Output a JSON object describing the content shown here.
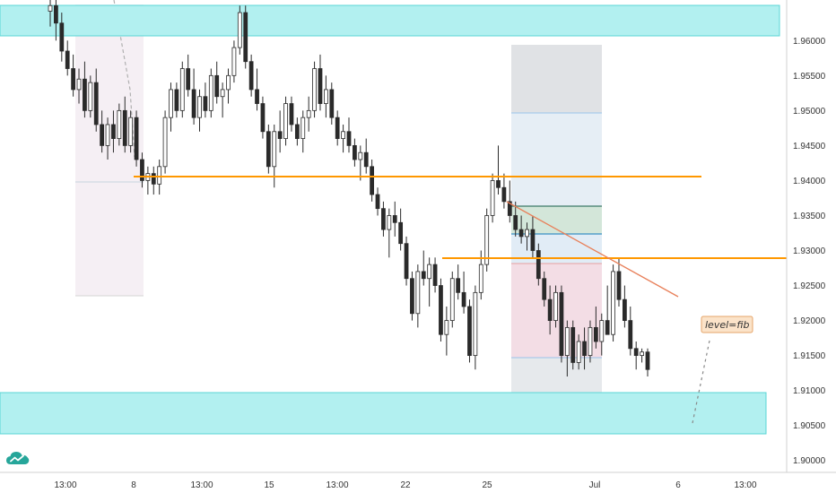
{
  "chart_data": {
    "type": "candlestick",
    "symbol_hint": "",
    "x_tick_labels": [
      "13:00",
      "8",
      "13:00",
      "15",
      "13:00",
      "22",
      "25",
      "Jul",
      "6",
      "13:00"
    ],
    "y_tick_labels": [
      "1.96000",
      "1.95500",
      "1.95000",
      "1.94500",
      "1.94000",
      "1.93500",
      "1.93000",
      "1.92500",
      "1.92000",
      "1.91500",
      "1.91000",
      "1.90500",
      "1.90000"
    ],
    "ylim": [
      1.8983,
      1.9658
    ],
    "grid": false,
    "annotation_label": "level=fib",
    "horizontal_levels": [
      1.9384,
      1.9265
    ],
    "zones": [
      {
        "name": "supply-zone",
        "y_low": 1.959,
        "y_high": 1.9634
      },
      {
        "name": "demand-zone",
        "y_low": 1.901,
        "y_high": 1.9069
      }
    ],
    "candles_ohlc": [
      [
        1.9642,
        1.9665,
        1.962,
        1.965
      ],
      [
        1.965,
        1.966,
        1.96,
        1.9625
      ],
      [
        1.9625,
        1.964,
        1.957,
        1.9585
      ],
      [
        1.9585,
        1.96,
        1.955,
        1.956
      ],
      [
        1.956,
        1.958,
        1.952,
        1.953
      ],
      [
        1.953,
        1.956,
        1.951,
        1.9545
      ],
      [
        1.9545,
        1.957,
        1.949,
        1.95
      ],
      [
        1.95,
        1.955,
        1.949,
        1.954
      ],
      [
        1.954,
        1.956,
        1.947,
        1.948
      ],
      [
        1.948,
        1.95,
        1.944,
        1.945
      ],
      [
        1.945,
        1.949,
        1.943,
        1.948
      ],
      [
        1.948,
        1.95,
        1.944,
        1.946
      ],
      [
        1.946,
        1.951,
        1.945,
        1.95
      ],
      [
        1.95,
        1.952,
        1.944,
        1.945
      ],
      [
        1.945,
        1.95,
        1.944,
        1.949
      ],
      [
        1.949,
        1.95,
        1.942,
        1.943
      ],
      [
        1.943,
        1.944,
        1.939,
        1.94
      ],
      [
        1.94,
        1.942,
        1.938,
        1.941
      ],
      [
        1.941,
        1.942,
        1.938,
        1.9395
      ],
      [
        1.9395,
        1.943,
        1.938,
        1.942
      ],
      [
        1.942,
        1.95,
        1.941,
        1.949
      ],
      [
        1.949,
        1.954,
        1.947,
        1.953
      ],
      [
        1.953,
        1.954,
        1.949,
        1.95
      ],
      [
        1.95,
        1.957,
        1.949,
        1.956
      ],
      [
        1.956,
        1.958,
        1.952,
        1.953
      ],
      [
        1.953,
        1.956,
        1.948,
        1.949
      ],
      [
        1.949,
        1.953,
        1.947,
        1.952
      ],
      [
        1.952,
        1.954,
        1.949,
        1.95
      ],
      [
        1.95,
        1.956,
        1.949,
        1.955
      ],
      [
        1.955,
        1.957,
        1.951,
        1.952
      ],
      [
        1.952,
        1.954,
        1.949,
        1.953
      ],
      [
        1.953,
        1.956,
        1.951,
        1.955
      ],
      [
        1.955,
        1.96,
        1.954,
        1.959
      ],
      [
        1.959,
        1.965,
        1.958,
        1.964
      ],
      [
        1.964,
        1.965,
        1.956,
        1.957
      ],
      [
        1.957,
        1.958,
        1.952,
        1.953
      ],
      [
        1.953,
        1.956,
        1.95,
        1.951
      ],
      [
        1.951,
        1.952,
        1.946,
        1.947
      ],
      [
        1.947,
        1.948,
        1.941,
        1.942
      ],
      [
        1.942,
        1.948,
        1.939,
        1.947
      ],
      [
        1.947,
        1.95,
        1.944,
        1.946
      ],
      [
        1.946,
        1.952,
        1.945,
        1.951
      ],
      [
        1.951,
        1.952,
        1.947,
        1.948
      ],
      [
        1.948,
        1.949,
        1.945,
        1.946
      ],
      [
        1.946,
        1.95,
        1.944,
        1.949
      ],
      [
        1.949,
        1.952,
        1.947,
        1.95
      ],
      [
        1.95,
        1.957,
        1.949,
        1.956
      ],
      [
        1.956,
        1.958,
        1.95,
        1.951
      ],
      [
        1.951,
        1.955,
        1.949,
        1.953
      ],
      [
        1.953,
        1.954,
        1.948,
        1.949
      ],
      [
        1.949,
        1.95,
        1.945,
        1.946
      ],
      [
        1.946,
        1.948,
        1.944,
        1.947
      ],
      [
        1.947,
        1.949,
        1.944,
        1.945
      ],
      [
        1.945,
        1.946,
        1.942,
        1.943
      ],
      [
        1.943,
        1.945,
        1.94,
        1.944
      ],
      [
        1.944,
        1.946,
        1.941,
        1.942
      ],
      [
        1.942,
        1.943,
        1.937,
        1.938
      ],
      [
        1.938,
        1.939,
        1.935,
        1.936
      ],
      [
        1.936,
        1.937,
        1.932,
        1.933
      ],
      [
        1.933,
        1.936,
        1.929,
        1.935
      ],
      [
        1.935,
        1.937,
        1.932,
        1.934
      ],
      [
        1.934,
        1.936,
        1.93,
        1.931
      ],
      [
        1.931,
        1.932,
        1.925,
        1.926
      ],
      [
        1.926,
        1.927,
        1.92,
        1.921
      ],
      [
        1.921,
        1.928,
        1.919,
        1.927
      ],
      [
        1.927,
        1.93,
        1.925,
        1.926
      ],
      [
        1.926,
        1.929,
        1.922,
        1.928
      ],
      [
        1.928,
        1.929,
        1.924,
        1.925
      ],
      [
        1.925,
        1.926,
        1.917,
        1.918
      ],
      [
        1.918,
        1.922,
        1.915,
        1.92
      ],
      [
        1.92,
        1.927,
        1.919,
        1.926
      ],
      [
        1.926,
        1.928,
        1.923,
        1.924
      ],
      [
        1.924,
        1.927,
        1.921,
        1.922
      ],
      [
        1.922,
        1.923,
        1.914,
        1.915
      ],
      [
        1.915,
        1.925,
        1.913,
        1.924
      ],
      [
        1.924,
        1.93,
        1.923,
        1.928
      ],
      [
        1.928,
        1.936,
        1.927,
        1.935
      ],
      [
        1.935,
        1.941,
        1.934,
        1.94
      ],
      [
        1.94,
        1.945,
        1.938,
        1.939
      ],
      [
        1.939,
        1.941,
        1.936,
        1.937
      ],
      [
        1.937,
        1.94,
        1.934,
        1.935
      ],
      [
        1.935,
        1.937,
        1.932,
        1.933
      ],
      [
        1.933,
        1.935,
        1.931,
        1.932
      ],
      [
        1.932,
        1.934,
        1.93,
        1.933
      ],
      [
        1.933,
        1.935,
        1.929,
        1.93
      ],
      [
        1.93,
        1.931,
        1.925,
        1.926
      ],
      [
        1.926,
        1.927,
        1.922,
        1.923
      ],
      [
        1.923,
        1.925,
        1.918,
        1.92
      ],
      [
        1.92,
        1.925,
        1.919,
        1.924
      ],
      [
        1.924,
        1.925,
        1.914,
        1.915
      ],
      [
        1.915,
        1.92,
        1.912,
        1.919
      ],
      [
        1.919,
        1.92,
        1.913,
        1.914
      ],
      [
        1.914,
        1.918,
        1.913,
        1.917
      ],
      [
        1.917,
        1.919,
        1.913,
        1.915
      ],
      [
        1.915,
        1.92,
        1.914,
        1.919
      ],
      [
        1.919,
        1.922,
        1.916,
        1.917
      ],
      [
        1.917,
        1.921,
        1.915,
        1.92
      ],
      [
        1.92,
        1.925,
        1.918,
        1.918
      ],
      [
        1.918,
        1.928,
        1.917,
        1.927
      ],
      [
        1.927,
        1.929,
        1.922,
        1.923
      ],
      [
        1.923,
        1.925,
        1.919,
        1.92
      ],
      [
        1.92,
        1.922,
        1.915,
        1.916
      ],
      [
        1.916,
        1.917,
        1.913,
        1.915
      ],
      [
        1.915,
        1.916,
        1.914,
        1.9155
      ],
      [
        1.9155,
        1.916,
        1.912,
        1.913
      ]
    ]
  },
  "colors": {
    "zone_fill": "#b2f0f0",
    "zone_border": "#5ad6d6",
    "level_line": "#ff9800",
    "trendline": "#e8805a",
    "candle_up": "#ffffff",
    "candle_down": "#2a2a2a",
    "candle_outline": "#2a2a2a",
    "fib_box": "#e6e9ec",
    "fib_blue": "#e3eef7",
    "fib_green": "#d3e6d9",
    "fib_pink": "#f3dde5",
    "range_box": "#f5eff4",
    "label_bg": "#fbe3c9",
    "label_border": "#e6a56a",
    "axis_text": "#333333",
    "logo": "#26a69a"
  },
  "icons": {
    "logo": "tradingview-cloud-icon"
  }
}
